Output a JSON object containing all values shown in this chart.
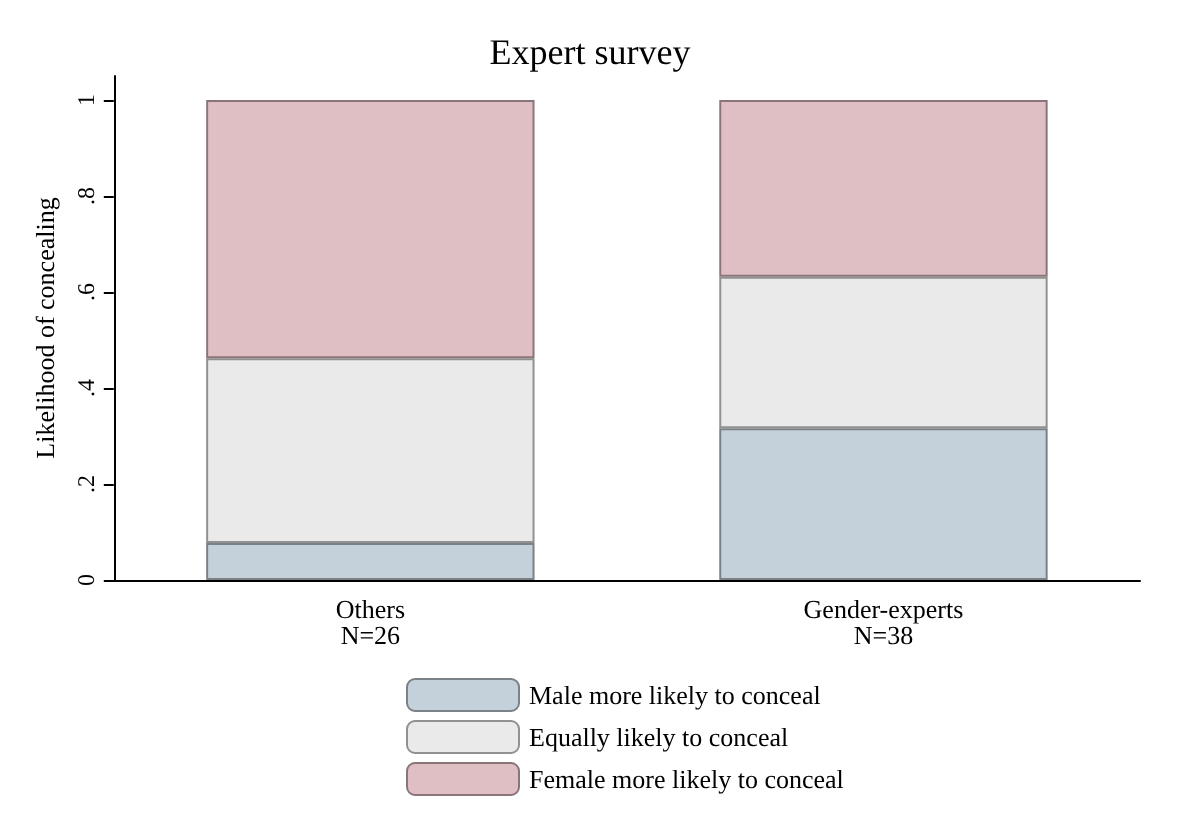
{
  "chart_data": {
    "type": "bar",
    "title": "Expert survey",
    "ylabel": "Likelihood of concealing",
    "categories": [
      "Others\nN=26",
      "Gender-experts\nN=38"
    ],
    "series": [
      {
        "name": "Male more likely to conceal",
        "color": "#c4d0da",
        "values": [
          0.077,
          0.316
        ]
      },
      {
        "name": "Equally likely to conceal",
        "color": "#eaeaea",
        "values": [
          0.385,
          0.316
        ]
      },
      {
        "name": "Female more likely to conceal",
        "color": "#dfbfc4",
        "values": [
          0.538,
          0.368
        ]
      }
    ],
    "stacked": true,
    "ylim": [
      0,
      1.05
    ],
    "yticks": [
      {
        "value": 0,
        "label": "0"
      },
      {
        "value": 0.2,
        "label": ".2"
      },
      {
        "value": 0.4,
        "label": ".4"
      },
      {
        "value": 0.6,
        "label": ".6"
      },
      {
        "value": 0.8,
        "label": ".8"
      },
      {
        "value": 1,
        "label": "1"
      }
    ],
    "grid": false,
    "legend": "bottom"
  }
}
